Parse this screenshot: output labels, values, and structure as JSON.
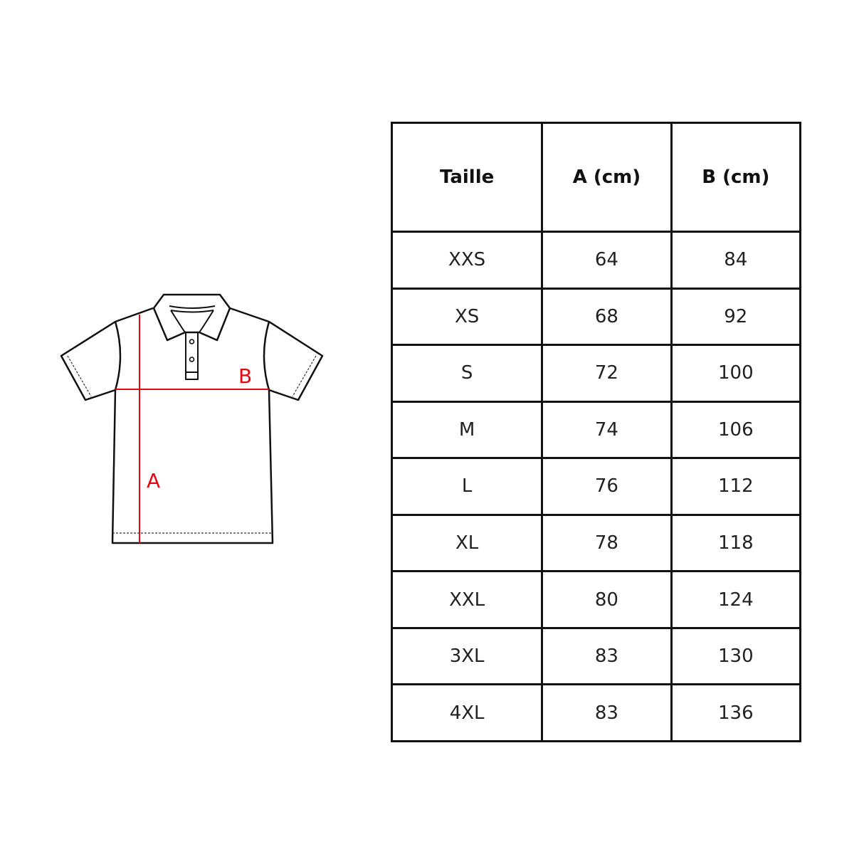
{
  "diagram": {
    "label_a": "A",
    "label_b": "B",
    "measure_color": "#e30613",
    "outline_color": "#111111"
  },
  "table": {
    "headers": [
      "Taille",
      "A (cm)",
      "B (cm)"
    ],
    "rows": [
      [
        "XXS",
        "64",
        "84"
      ],
      [
        "XS",
        "68",
        "92"
      ],
      [
        "S",
        "72",
        "100"
      ],
      [
        "M",
        "74",
        "106"
      ],
      [
        "L",
        "76",
        "112"
      ],
      [
        "XL",
        "78",
        "118"
      ],
      [
        "XXL",
        "80",
        "124"
      ],
      [
        "3XL",
        "83",
        "130"
      ],
      [
        "4XL",
        "83",
        "136"
      ]
    ]
  }
}
